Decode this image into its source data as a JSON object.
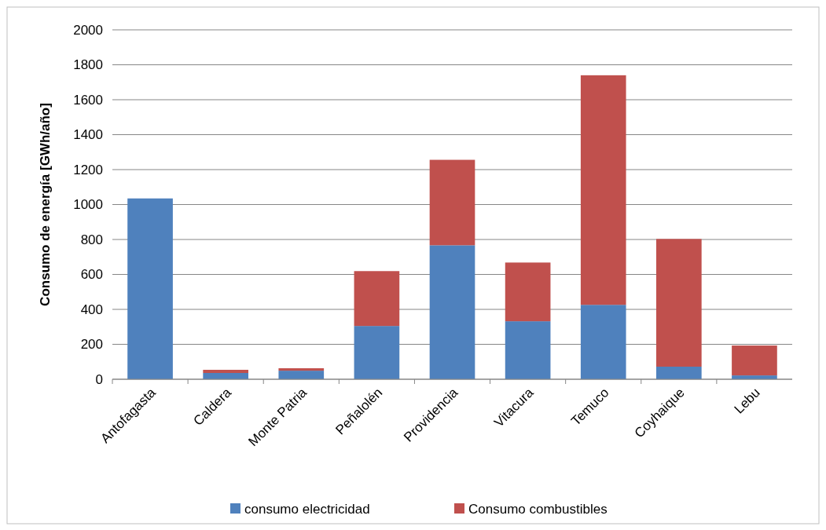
{
  "chart_data": {
    "type": "bar",
    "stacked": true,
    "ylabel": "Consumo de energía [GWh/año]",
    "categories": [
      "Antofagasta",
      "Caldera",
      "Monte Patria",
      "Peñalolén",
      "Providencia",
      "Vitacura",
      "Temuco",
      "Coyhaique",
      "Lebu"
    ],
    "series": [
      {
        "name": "consumo electricidad",
        "color": "#4f81bd",
        "values": [
          1035,
          36,
          49,
          305,
          767,
          332,
          426,
          72,
          22
        ]
      },
      {
        "name": "Consumo combustibles",
        "color": "#c0504d",
        "values": [
          0,
          18,
          14,
          314,
          489,
          336,
          1314,
          731,
          171
        ]
      }
    ],
    "ylim": [
      0,
      2000
    ],
    "yticks": [
      0,
      200,
      400,
      600,
      800,
      1000,
      1200,
      1400,
      1600,
      1800,
      2000
    ],
    "grid": "y",
    "legend": "bottom"
  }
}
